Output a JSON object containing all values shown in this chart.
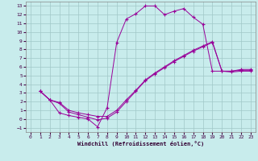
{
  "bg_color": "#c8ecec",
  "grid_color": "#a0c8c8",
  "line_color": "#990099",
  "xlabel": "Windchill (Refroidissement éolien,°C)",
  "xlim": [
    -0.5,
    23.5
  ],
  "ylim": [
    -1.5,
    13.5
  ],
  "xticks": [
    0,
    1,
    2,
    3,
    4,
    5,
    6,
    7,
    8,
    9,
    10,
    11,
    12,
    13,
    14,
    15,
    16,
    17,
    18,
    19,
    20,
    21,
    22,
    23
  ],
  "yticks": [
    -1,
    0,
    1,
    2,
    3,
    4,
    5,
    6,
    7,
    8,
    9,
    10,
    11,
    12,
    13
  ],
  "line1_x": [
    1,
    2,
    3,
    4,
    5,
    6,
    7,
    8,
    9,
    10,
    11,
    12,
    13,
    14,
    15,
    16,
    17,
    18,
    19,
    20,
    21,
    22,
    23
  ],
  "line1_y": [
    3.2,
    2.2,
    0.7,
    0.4,
    0.2,
    0.0,
    -0.9,
    1.3,
    8.8,
    11.5,
    12.1,
    13.0,
    13.0,
    12.0,
    12.4,
    12.7,
    11.7,
    10.9,
    5.5,
    5.5,
    5.4,
    5.5,
    5.5
  ],
  "line2_x": [
    1,
    2,
    3,
    4,
    5,
    6,
    7,
    8,
    9,
    10,
    11,
    12,
    13,
    14,
    15,
    16,
    17,
    18,
    19,
    20,
    21,
    22,
    23
  ],
  "line2_y": [
    3.2,
    2.2,
    1.8,
    0.8,
    0.5,
    0.2,
    -0.1,
    0.1,
    0.8,
    2.0,
    3.2,
    4.4,
    5.2,
    5.9,
    6.6,
    7.2,
    7.8,
    8.3,
    8.8,
    5.5,
    5.5,
    5.6,
    5.6
  ],
  "line3_x": [
    1,
    2,
    3,
    4,
    5,
    6,
    7,
    8,
    9,
    10,
    11,
    12,
    13,
    14,
    15,
    16,
    17,
    18,
    19,
    20,
    21,
    22,
    23
  ],
  "line3_y": [
    3.2,
    2.2,
    1.9,
    1.0,
    0.7,
    0.5,
    0.3,
    0.3,
    1.0,
    2.2,
    3.3,
    4.5,
    5.3,
    6.0,
    6.7,
    7.3,
    7.9,
    8.4,
    8.9,
    5.5,
    5.5,
    5.7,
    5.7
  ]
}
